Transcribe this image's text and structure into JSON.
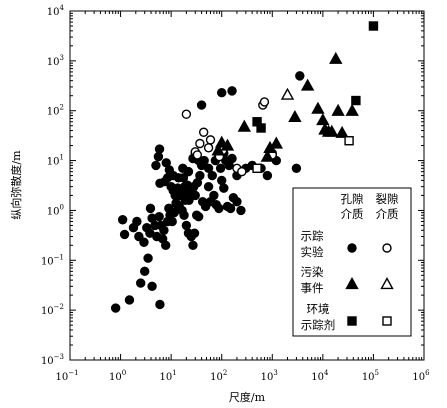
{
  "chart_data": {
    "type": "scatter",
    "x_scale": "log",
    "y_scale": "log",
    "xlabel": "尺度/m",
    "ylabel": "纵向弥散度/m",
    "xlim": [
      0.1,
      1000000
    ],
    "ylim": [
      0.001,
      10000
    ],
    "x_ticks": [
      {
        "base": "10",
        "exp": "−1"
      },
      {
        "base": "10",
        "exp": "0"
      },
      {
        "base": "10",
        "exp": "1"
      },
      {
        "base": "10",
        "exp": "2"
      },
      {
        "base": "10",
        "exp": "3"
      },
      {
        "base": "10",
        "exp": "4"
      },
      {
        "base": "10",
        "exp": "5"
      },
      {
        "base": "10",
        "exp": "6"
      }
    ],
    "y_ticks": [
      {
        "base": "10",
        "exp": "−3"
      },
      {
        "base": "10",
        "exp": "−2"
      },
      {
        "base": "10",
        "exp": "−1"
      },
      {
        "base": "10",
        "exp": "0"
      },
      {
        "base": "10",
        "exp": "1"
      },
      {
        "base": "10",
        "exp": "2"
      },
      {
        "base": "10",
        "exp": "3"
      },
      {
        "base": "10",
        "exp": "4"
      }
    ],
    "grid": false,
    "legend_position": "bottom-right",
    "legend": {
      "col_headers": [
        [
          "孔隙",
          "介质"
        ],
        [
          "裂隙",
          "介质"
        ]
      ],
      "rows": [
        {
          "label": [
            "示踪",
            "实验"
          ],
          "porous_marker": "filled-circle",
          "fractured_marker": "open-circle"
        },
        {
          "label": [
            "污染",
            "事件"
          ],
          "porous_marker": "filled-triangle",
          "fractured_marker": "open-triangle"
        },
        {
          "label": [
            "环境",
            "示踪剂"
          ],
          "porous_marker": "filled-square",
          "fractured_marker": "open-square"
        }
      ]
    },
    "series": [
      {
        "name": "示踪实验 孔隙介质",
        "marker": "filled-circle",
        "color": "#000000",
        "points": [
          [
            0.8,
            0.011
          ],
          [
            1.5,
            0.016
          ],
          [
            2.5,
            0.035
          ],
          [
            3,
            0.06
          ],
          [
            3.5,
            0.11
          ],
          [
            4.2,
            0.03
          ],
          [
            6,
            0.013
          ],
          [
            1.1,
            0.65
          ],
          [
            1.8,
            0.45
          ],
          [
            1.2,
            0.33
          ],
          [
            2.3,
            0.3
          ],
          [
            2.1,
            0.6
          ],
          [
            2.9,
            0.23
          ],
          [
            3.3,
            0.45
          ],
          [
            3.8,
            0.35
          ],
          [
            4.2,
            0.7
          ],
          [
            3.9,
            1.1
          ],
          [
            4.8,
            0.5
          ],
          [
            5.2,
            0.3
          ],
          [
            5.8,
            0.75
          ],
          [
            6.3,
            0.5
          ],
          [
            6.8,
            0.27
          ],
          [
            7.2,
            0.4
          ],
          [
            7.8,
            0.2
          ],
          [
            8.5,
            0.6
          ],
          [
            9.5,
            0.8
          ],
          [
            10.5,
            0.6
          ],
          [
            11.5,
            0.9
          ],
          [
            12.5,
            1.4
          ],
          [
            13.2,
            1.3
          ],
          [
            9,
            1.1
          ],
          [
            14.5,
            1.2
          ],
          [
            16.5,
            1.0
          ],
          [
            18,
            0.8
          ],
          [
            19,
            1.6
          ],
          [
            20,
            0.5
          ],
          [
            22,
            0.35
          ],
          [
            25,
            0.3
          ],
          [
            27,
            0.2
          ],
          [
            29,
            0.35
          ],
          [
            32,
            0.8
          ],
          [
            35,
            0.75
          ],
          [
            6,
            3.5
          ],
          [
            7.5,
            3.8
          ],
          [
            8.5,
            4.5
          ],
          [
            10,
            3
          ],
          [
            11,
            2.5
          ],
          [
            12,
            2
          ],
          [
            13.5,
            2.8
          ],
          [
            15,
            2
          ],
          [
            16,
            2.6
          ],
          [
            17.5,
            4.5
          ],
          [
            18.5,
            3
          ],
          [
            19.5,
            2.2
          ],
          [
            21,
            3.2
          ],
          [
            22.5,
            1.6
          ],
          [
            24,
            2.2
          ],
          [
            26,
            2.6
          ],
          [
            28,
            3
          ],
          [
            30,
            2
          ],
          [
            33,
            3.6
          ],
          [
            37,
            5
          ],
          [
            42,
            1.5
          ],
          [
            48,
            1.2
          ],
          [
            55,
            3
          ],
          [
            60,
            1.5
          ],
          [
            70,
            2
          ],
          [
            78,
            1.3
          ],
          [
            88,
            1.1
          ],
          [
            100,
            4
          ],
          [
            110,
            2.8
          ],
          [
            130,
            1.2
          ],
          [
            150,
            1.1
          ],
          [
            170,
            1.8
          ],
          [
            200,
            1.5
          ],
          [
            240,
            1
          ],
          [
            5,
            8
          ],
          [
            5.6,
            12
          ],
          [
            5.9,
            17
          ],
          [
            8,
            9
          ],
          [
            9.2,
            6.5
          ],
          [
            11,
            5
          ],
          [
            14,
            4.5
          ],
          [
            17,
            7
          ],
          [
            22,
            6
          ],
          [
            27,
            11
          ],
          [
            30,
            14
          ],
          [
            35,
            10
          ],
          [
            40,
            8
          ],
          [
            45,
            10
          ],
          [
            55,
            7
          ],
          [
            65,
            5
          ],
          [
            75,
            10
          ],
          [
            85,
            14
          ],
          [
            95,
            7
          ],
          [
            110,
            14
          ],
          [
            120,
            10
          ],
          [
            140,
            8
          ],
          [
            160,
            11
          ],
          [
            200,
            5
          ],
          [
            300,
            7
          ],
          [
            400,
            8
          ],
          [
            600,
            7
          ],
          [
            800,
            5
          ],
          [
            1000,
            14
          ],
          [
            1200,
            10
          ],
          [
            3000,
            7
          ],
          [
            40,
            130
          ],
          [
            100,
            230
          ],
          [
            160,
            250
          ],
          [
            3500,
            500
          ]
        ]
      },
      {
        "name": "示踪实验 裂隙介质",
        "marker": "open-circle",
        "color": "#000000",
        "points": [
          [
            20,
            85
          ],
          [
            30,
            15
          ],
          [
            33,
            13
          ],
          [
            37,
            22
          ],
          [
            44,
            37
          ],
          [
            55,
            18
          ],
          [
            60,
            26
          ],
          [
            90,
            12
          ],
          [
            105,
            16
          ],
          [
            200,
            7
          ],
          [
            250,
            6
          ],
          [
            650,
            130
          ],
          [
            700,
            150
          ],
          [
            1000,
            13
          ]
        ]
      },
      {
        "name": "污染事件 孔隙介质",
        "marker": "filled-triangle",
        "color": "#000000",
        "points": [
          [
            85,
            16
          ],
          [
            100,
            23
          ],
          [
            130,
            20
          ],
          [
            280,
            48
          ],
          [
            800,
            12
          ],
          [
            900,
            18
          ],
          [
            1200,
            22
          ],
          [
            2800,
            75
          ],
          [
            5000,
            320
          ],
          [
            8000,
            110
          ],
          [
            10000,
            65
          ],
          [
            11000,
            42
          ],
          [
            13000,
            38
          ],
          [
            15000,
            38
          ],
          [
            18000,
            1100
          ],
          [
            20000,
            100
          ],
          [
            24000,
            36
          ],
          [
            38000,
            100
          ]
        ]
      },
      {
        "name": "污染事件 裂隙介质",
        "marker": "open-triangle",
        "color": "#000000",
        "points": [
          [
            2000,
            210
          ]
        ]
      },
      {
        "name": "环境示踪剂 孔隙介质",
        "marker": "filled-square",
        "color": "#000000",
        "points": [
          [
            500,
            60
          ],
          [
            600,
            45
          ],
          [
            45000,
            160
          ],
          [
            100000,
            5000
          ]
        ]
      },
      {
        "name": "环境示踪剂 裂隙介质",
        "marker": "open-square",
        "color": "#000000",
        "points": [
          [
            500,
            7
          ],
          [
            33000,
            25
          ]
        ]
      }
    ]
  }
}
